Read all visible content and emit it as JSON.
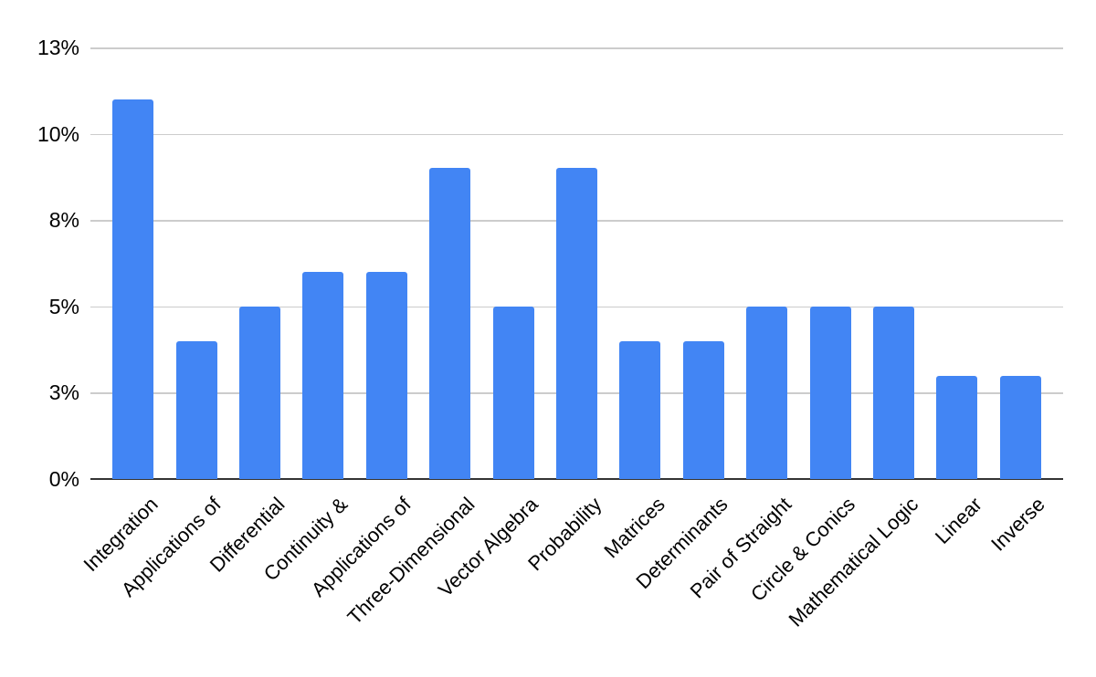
{
  "page": {
    "background": "#ffffff"
  },
  "chart_data": {
    "type": "bar",
    "title": "",
    "xlabel": "",
    "ylabel": "",
    "categories": [
      "Integration",
      "Applications of",
      "Differential",
      "Continuity &",
      "Applications of",
      "Three-Dimensional",
      "Vector Algebra",
      "Probability",
      "Matrices",
      "Determinants",
      "Pair of Straight",
      "Circle & Conics",
      "Mathematical Logic",
      "Linear",
      "Inverse"
    ],
    "values": [
      11,
      4,
      5,
      6,
      6,
      9,
      5,
      9,
      4,
      4,
      5,
      5,
      5,
      3,
      3
    ],
    "value_unit": "%",
    "ylim": [
      0,
      12.5
    ],
    "y_ticks": [
      {
        "value": 0,
        "label": "0%"
      },
      {
        "value": 2.5,
        "label": "3%"
      },
      {
        "value": 5,
        "label": "5%"
      },
      {
        "value": 7.5,
        "label": "8%"
      },
      {
        "value": 10,
        "label": "10%"
      },
      {
        "value": 12.5,
        "label": "13%"
      }
    ],
    "grid": true,
    "legend_position": "none",
    "x_label_rotation_deg": -45,
    "colors": {
      "bar": "#4285f4",
      "gridline": "#cccccc",
      "axis_line": "#333333",
      "tick_text": "#000000"
    }
  }
}
